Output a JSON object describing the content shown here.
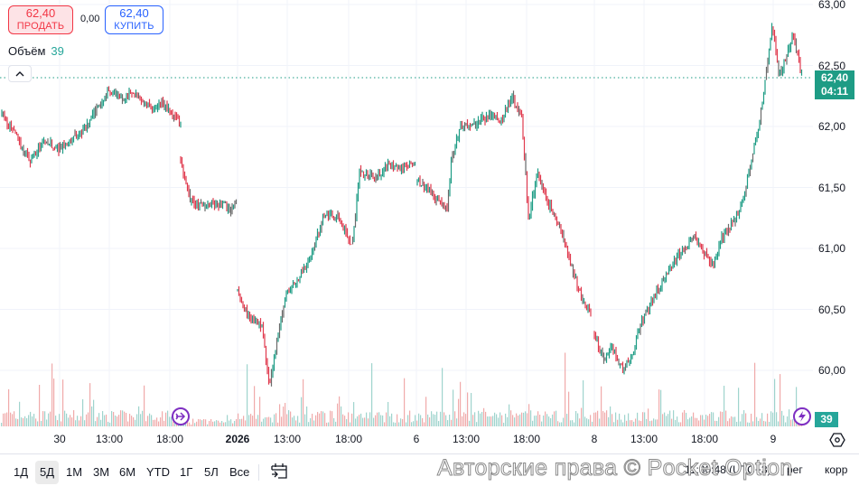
{
  "trade": {
    "sell": {
      "price": "62,40",
      "label": "ПРОДАТЬ"
    },
    "spread": "0,00",
    "buy": {
      "price": "62,40",
      "label": "КУПИТЬ"
    }
  },
  "volume_legend": {
    "label": "Объём",
    "value": "39"
  },
  "current_price": {
    "price": "62,40",
    "countdown": "04:11"
  },
  "volume_tag": "39",
  "colors": {
    "up": "#1e9c85",
    "down": "#e03a4e",
    "neutral": "#6b6b6b",
    "vol_up": "#9fd4cd",
    "vol_down": "#f0aaaa",
    "grid": "#f0f3fa",
    "price_line": "#1e9c85"
  },
  "range_buttons": [
    {
      "label": "1Д",
      "active": false
    },
    {
      "label": "5Д",
      "active": true
    },
    {
      "label": "1М",
      "active": false
    },
    {
      "label": "3М",
      "active": false
    },
    {
      "label": "6М",
      "active": false
    },
    {
      "label": "YTD",
      "active": false
    },
    {
      "label": "1Г",
      "active": false
    },
    {
      "label": "5Л",
      "active": false
    },
    {
      "label": "Все",
      "active": false
    }
  ],
  "bottom_right": {
    "time": "11:30:48 (UTC+3)",
    "scale_mode": "рег",
    "correction": "корр"
  },
  "watermark": "Авторские права © Pocket Option",
  "chart_data": {
    "type": "candlestick",
    "title": "",
    "xlabel": "",
    "ylabel": "",
    "ylim": [
      59.7,
      63.0
    ],
    "grid": true,
    "y_ticks": [
      {
        "label": "63,00",
        "value": 63.0
      },
      {
        "label": "62,50",
        "value": 62.5
      },
      {
        "label": "62,00",
        "value": 62.0
      },
      {
        "label": "61,50",
        "value": 61.5
      },
      {
        "label": "61,00",
        "value": 61.0
      },
      {
        "label": "60,50",
        "value": 60.5
      },
      {
        "label": "60,00",
        "value": 60.0
      }
    ],
    "x_ticks": [
      {
        "label": "30",
        "x": 66,
        "bold": false
      },
      {
        "label": "13:00",
        "x": 121,
        "bold": false
      },
      {
        "label": "18:00",
        "x": 188,
        "bold": false
      },
      {
        "label": "2026",
        "x": 263,
        "bold": true
      },
      {
        "label": "13:00",
        "x": 318,
        "bold": false
      },
      {
        "label": "18:00",
        "x": 386,
        "bold": false
      },
      {
        "label": "6",
        "x": 461,
        "bold": false
      },
      {
        "label": "13:00",
        "x": 516,
        "bold": false
      },
      {
        "label": "18:00",
        "x": 583,
        "bold": false
      },
      {
        "label": "8",
        "x": 658,
        "bold": false
      },
      {
        "label": "13:00",
        "x": 713,
        "bold": false
      },
      {
        "label": "18:00",
        "x": 780,
        "bold": false
      },
      {
        "label": "9",
        "x": 856,
        "bold": false
      }
    ],
    "price_path_segments": [
      [
        [
          2,
          62.1
        ],
        [
          15,
          61.95
        ],
        [
          33,
          61.72
        ],
        [
          50,
          61.88
        ],
        [
          65,
          61.82
        ],
        [
          80,
          61.9
        ],
        [
          95,
          61.98
        ],
        [
          105,
          62.12
        ],
        [
          120,
          62.3
        ],
        [
          135,
          62.22
        ],
        [
          150,
          62.28
        ],
        [
          165,
          62.15
        ],
        [
          180,
          62.18
        ],
        [
          200,
          62.02
        ]
      ],
      [
        [
          200,
          61.72
        ],
        [
          210,
          61.4
        ],
        [
          225,
          61.35
        ],
        [
          240,
          61.38
        ],
        [
          255,
          61.32
        ],
        [
          262,
          61.42
        ]
      ],
      [
        [
          263,
          60.65
        ],
        [
          275,
          60.45
        ],
        [
          290,
          60.35
        ],
        [
          298,
          59.88
        ],
        [
          305,
          60.15
        ],
        [
          315,
          60.6
        ],
        [
          330,
          60.75
        ],
        [
          345,
          60.95
        ],
        [
          360,
          61.3
        ],
        [
          375,
          61.25
        ],
        [
          390,
          61.02
        ],
        [
          398,
          61.62
        ],
        [
          415,
          61.58
        ],
        [
          430,
          61.68
        ],
        [
          445,
          61.65
        ],
        [
          460,
          61.72
        ]
      ],
      [
        [
          462,
          61.55
        ],
        [
          475,
          61.48
        ],
        [
          495,
          61.32
        ],
        [
          500,
          61.75
        ],
        [
          510,
          62.0
        ],
        [
          525,
          62.02
        ],
        [
          540,
          62.08
        ],
        [
          555,
          62.05
        ],
        [
          567,
          62.25
        ],
        [
          578,
          62.05
        ],
        [
          585,
          61.25
        ],
        [
          595,
          61.62
        ],
        [
          605,
          61.4
        ],
        [
          620,
          61.15
        ],
        [
          632,
          60.88
        ],
        [
          645,
          60.55
        ],
        [
          655,
          60.45
        ]
      ],
      [
        [
          658,
          60.3
        ],
        [
          668,
          60.1
        ],
        [
          678,
          60.18
        ],
        [
          688,
          60.02
        ],
        [
          698,
          60.08
        ],
        [
          710,
          60.4
        ],
        [
          725,
          60.62
        ],
        [
          740,
          60.82
        ],
        [
          755,
          60.98
        ],
        [
          768,
          61.1
        ],
        [
          780,
          60.95
        ],
        [
          790,
          60.85
        ],
        [
          800,
          61.1
        ],
        [
          815,
          61.25
        ],
        [
          825,
          61.48
        ],
        [
          832,
          61.72
        ],
        [
          840,
          62.0
        ],
        [
          847,
          62.38
        ],
        [
          855,
          62.85
        ],
        [
          862,
          62.42
        ],
        [
          870,
          62.55
        ],
        [
          878,
          62.75
        ],
        [
          888,
          62.4
        ]
      ]
    ],
    "volume": {
      "baseline_y": 472,
      "last": 39
    }
  }
}
